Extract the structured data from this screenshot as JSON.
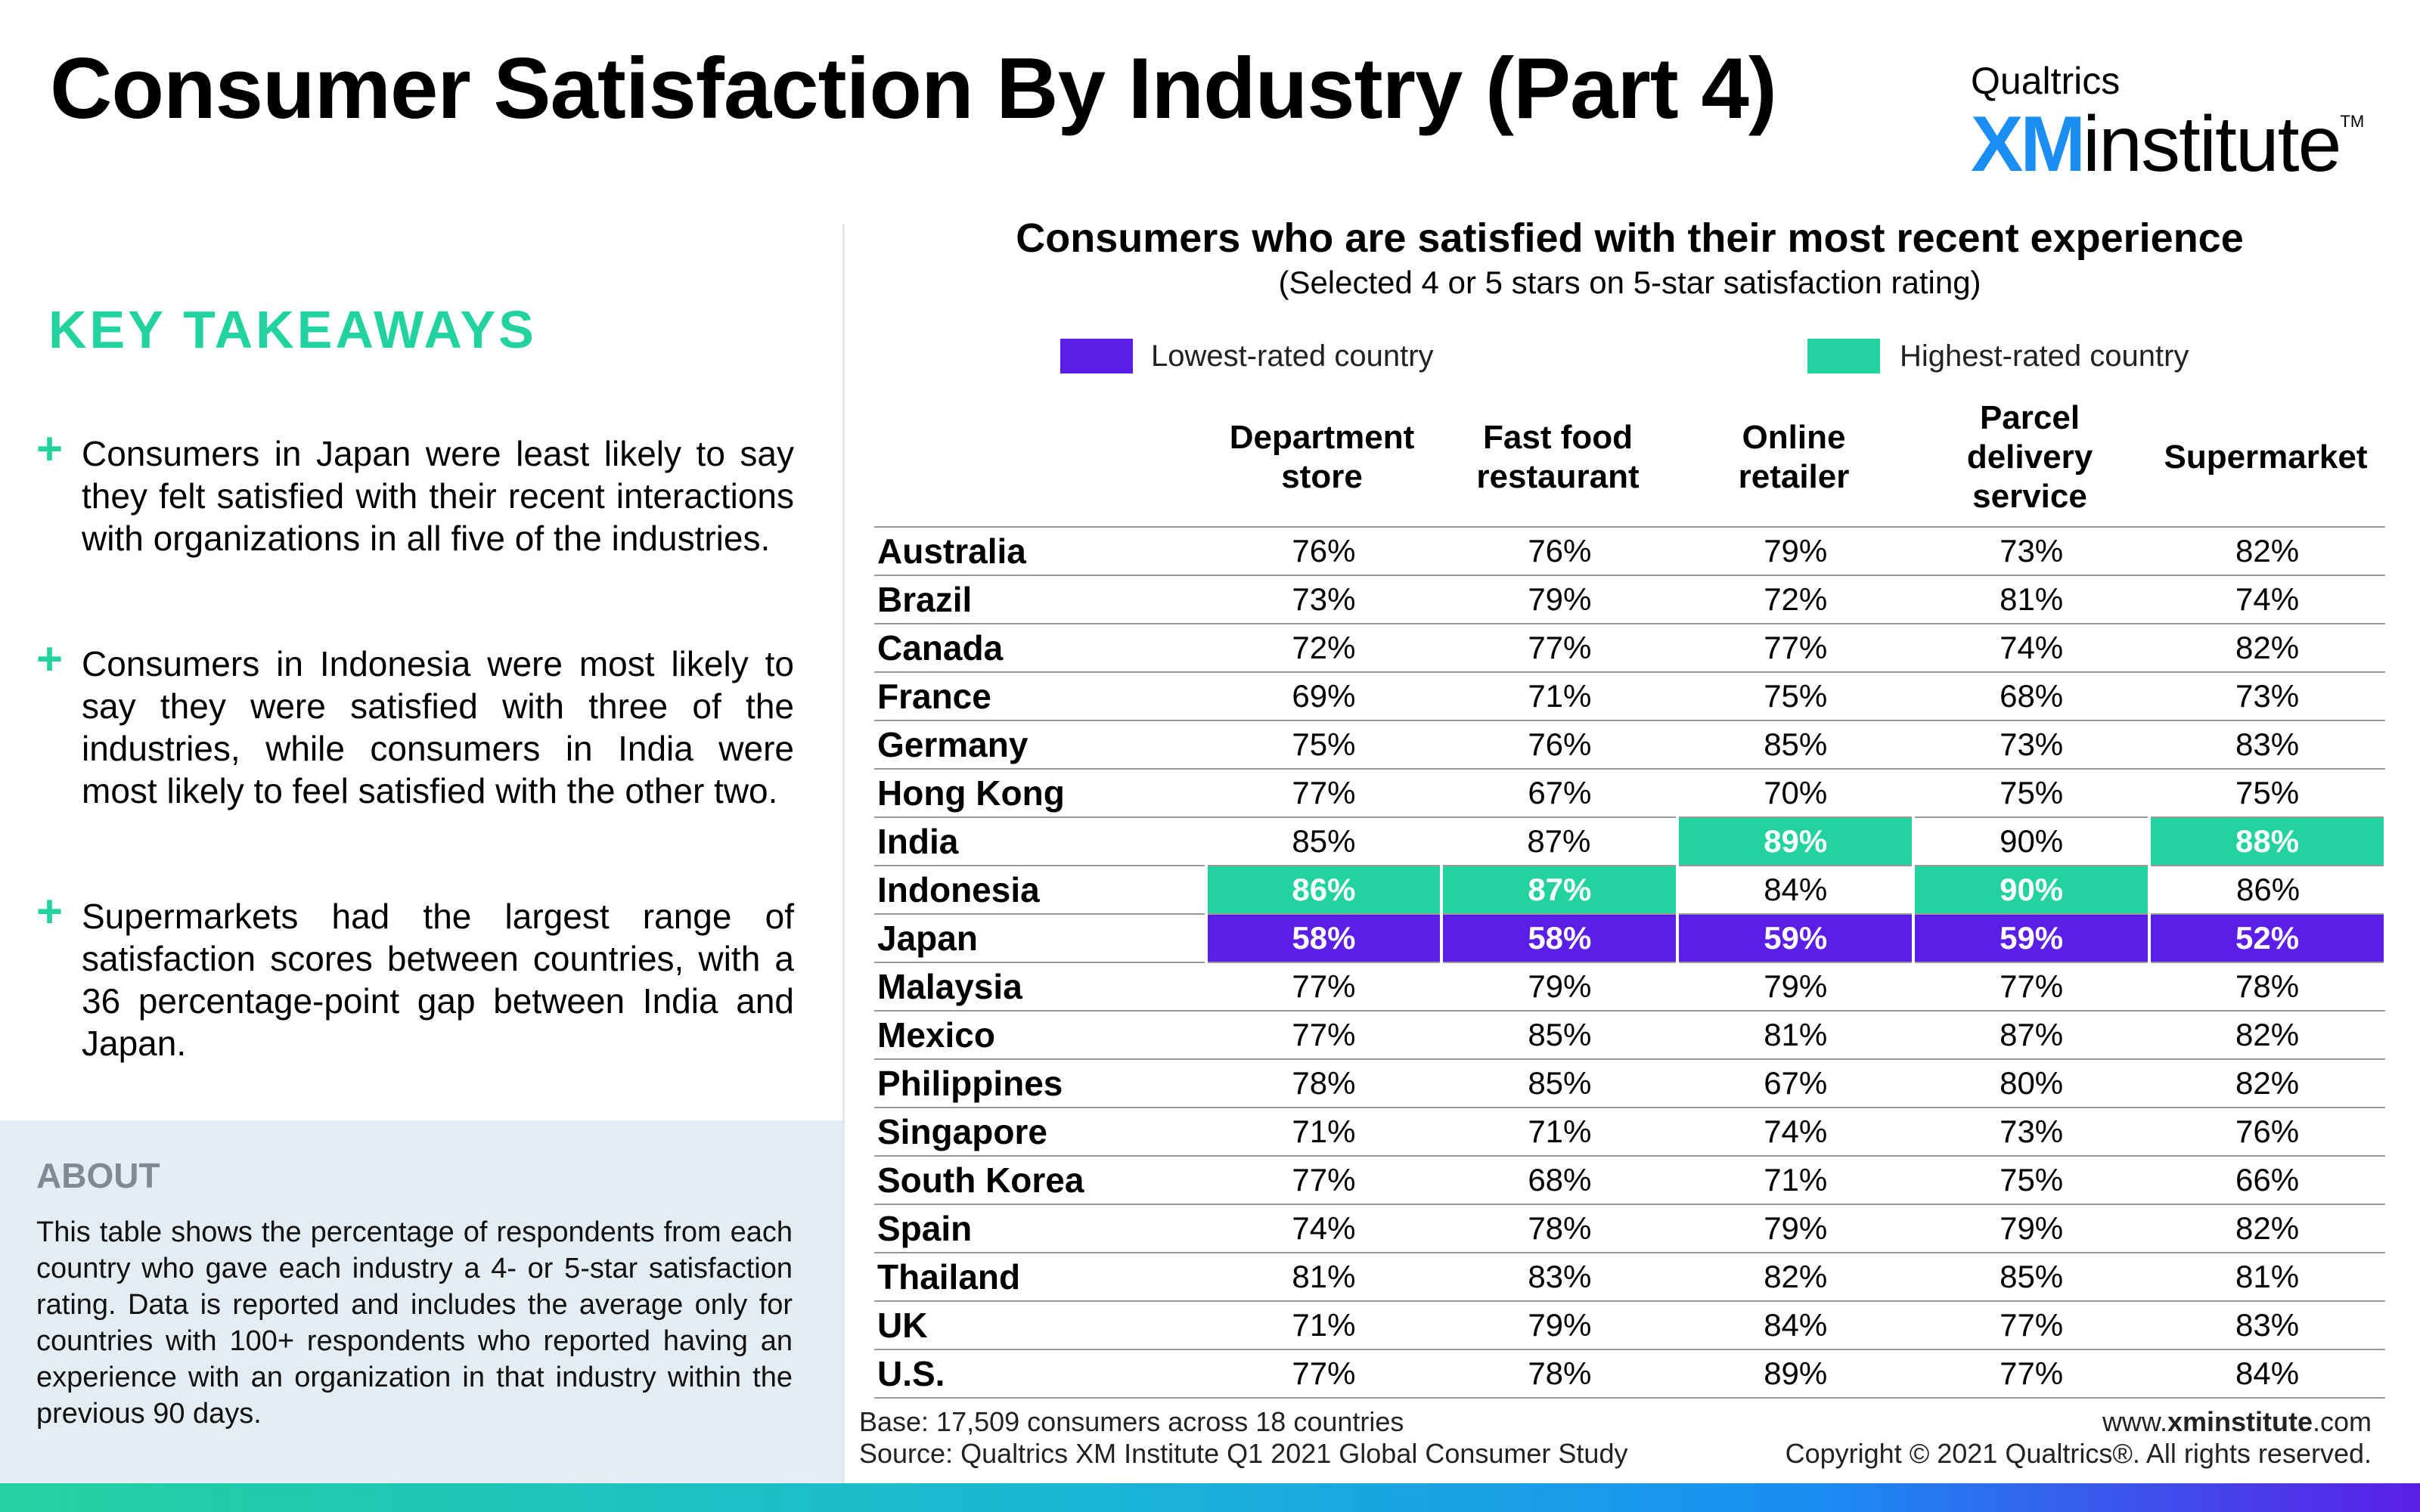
{
  "page": {
    "title": "Consumer Satisfaction By Industry (Part 4)"
  },
  "logo": {
    "top": "Qualtrics",
    "xm": "XM",
    "institute": "institute",
    "tm": "TM"
  },
  "key_takeaways": {
    "title": "KEY TAKEAWAYS",
    "items": [
      "Consumers in Japan were least likely to say they felt satisfied with their recent interactions with organizations in all five of the industries.",
      "Consumers in Indonesia were most likely to say they were satisfied with three of the industries, while consumers in India were most likely to feel satisfied with the other two.",
      "Supermarkets had the largest range of satisfaction scores between countries, with a 36 percentage-point gap between India and Japan."
    ],
    "bullet": "+"
  },
  "about": {
    "title": "ABOUT",
    "text": "This table shows the percentage of respondents from each country who gave each industry a 4- or 5-star satisfaction rating. Data is reported and includes the average only for countries with 100+ respondents who reported having an experience with an organization in that industry within the previous 90 days."
  },
  "chart": {
    "title": "Consumers who are satisfied with their most recent experience",
    "subtitle": "(Selected 4 or 5 stars on 5-star satisfaction rating)",
    "legend": {
      "lowest": "Lowest-rated country",
      "highest": "Highest-rated country"
    },
    "colors": {
      "lowest": "#5b1ee8",
      "highest": "#22d3a0"
    },
    "columns": [
      [
        "Department",
        "store"
      ],
      [
        "Fast food",
        "restaurant"
      ],
      [
        "Online",
        "retailer"
      ],
      [
        "Parcel",
        "delivery",
        "service"
      ],
      [
        "Supermarket"
      ]
    ]
  },
  "chart_data": {
    "type": "table",
    "title": "Consumers who are satisfied with their most recent experience",
    "subtitle": "(Selected 4 or 5 stars on 5-star satisfaction rating)",
    "columns": [
      "Department store",
      "Fast food restaurant",
      "Online retailer",
      "Parcel delivery service",
      "Supermarket"
    ],
    "rows": [
      {
        "country": "Australia",
        "values": [
          "76%",
          "76%",
          "79%",
          "73%",
          "82%"
        ],
        "flags": [
          "",
          "",
          "",
          "",
          ""
        ]
      },
      {
        "country": "Brazil",
        "values": [
          "73%",
          "79%",
          "72%",
          "81%",
          "74%"
        ],
        "flags": [
          "",
          "",
          "",
          "",
          ""
        ]
      },
      {
        "country": "Canada",
        "values": [
          "72%",
          "77%",
          "77%",
          "74%",
          "82%"
        ],
        "flags": [
          "",
          "",
          "",
          "",
          ""
        ]
      },
      {
        "country": "France",
        "values": [
          "69%",
          "71%",
          "75%",
          "68%",
          "73%"
        ],
        "flags": [
          "",
          "",
          "",
          "",
          ""
        ]
      },
      {
        "country": "Germany",
        "values": [
          "75%",
          "76%",
          "85%",
          "73%",
          "83%"
        ],
        "flags": [
          "",
          "",
          "",
          "",
          ""
        ]
      },
      {
        "country": "Hong Kong",
        "values": [
          "77%",
          "67%",
          "70%",
          "75%",
          "75%"
        ],
        "flags": [
          "",
          "",
          "",
          "",
          ""
        ]
      },
      {
        "country": "India",
        "values": [
          "85%",
          "87%",
          "89%",
          "90%",
          "88%"
        ],
        "flags": [
          "",
          "",
          "high",
          "",
          "high"
        ]
      },
      {
        "country": "Indonesia",
        "values": [
          "86%",
          "87%",
          "84%",
          "90%",
          "86%"
        ],
        "flags": [
          "high",
          "high",
          "",
          "high",
          ""
        ]
      },
      {
        "country": "Japan",
        "values": [
          "58%",
          "58%",
          "59%",
          "59%",
          "52%"
        ],
        "flags": [
          "low",
          "low",
          "low",
          "low",
          "low"
        ]
      },
      {
        "country": "Malaysia",
        "values": [
          "77%",
          "79%",
          "79%",
          "77%",
          "78%"
        ],
        "flags": [
          "",
          "",
          "",
          "",
          ""
        ]
      },
      {
        "country": "Mexico",
        "values": [
          "77%",
          "85%",
          "81%",
          "87%",
          "82%"
        ],
        "flags": [
          "",
          "",
          "",
          "",
          ""
        ]
      },
      {
        "country": "Philippines",
        "values": [
          "78%",
          "85%",
          "67%",
          "80%",
          "82%"
        ],
        "flags": [
          "",
          "",
          "",
          "",
          ""
        ]
      },
      {
        "country": "Singapore",
        "values": [
          "71%",
          "71%",
          "74%",
          "73%",
          "76%"
        ],
        "flags": [
          "",
          "",
          "",
          "",
          ""
        ]
      },
      {
        "country": "South Korea",
        "values": [
          "77%",
          "68%",
          "71%",
          "75%",
          "66%"
        ],
        "flags": [
          "",
          "",
          "",
          "",
          ""
        ]
      },
      {
        "country": "Spain",
        "values": [
          "74%",
          "78%",
          "79%",
          "79%",
          "82%"
        ],
        "flags": [
          "",
          "",
          "",
          "",
          ""
        ]
      },
      {
        "country": "Thailand",
        "values": [
          "81%",
          "83%",
          "82%",
          "85%",
          "81%"
        ],
        "flags": [
          "",
          "",
          "",
          "",
          ""
        ]
      },
      {
        "country": "UK",
        "values": [
          "71%",
          "79%",
          "84%",
          "77%",
          "83%"
        ],
        "flags": [
          "",
          "",
          "",
          "",
          ""
        ]
      },
      {
        "country": "U.S.",
        "values": [
          "77%",
          "78%",
          "89%",
          "77%",
          "84%"
        ],
        "flags": [
          "",
          "",
          "",
          "",
          ""
        ]
      }
    ]
  },
  "footer": {
    "base": "Base: 17,509 consumers across 18 countries",
    "source": "Source: Qualtrics XM Institute Q1 2021 Global Consumer Study",
    "url_prefix": "www.",
    "url_bold": "xminstitute",
    "url_suffix": ".com",
    "copyright": "Copyright © 2021 Qualtrics®. All rights reserved."
  }
}
